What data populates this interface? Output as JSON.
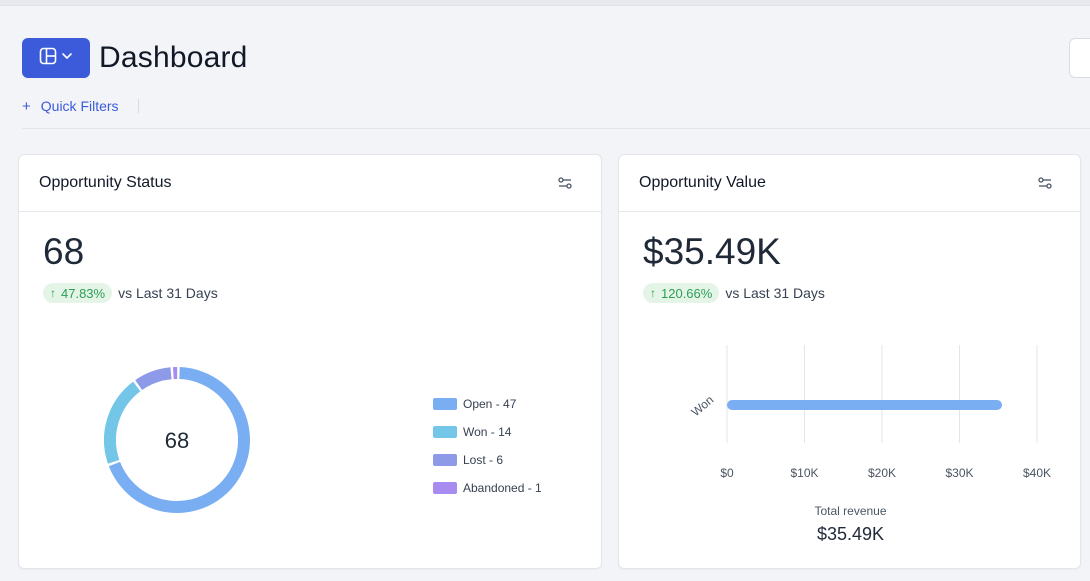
{
  "header": {
    "title": "Dashboard",
    "quick_filters_label": "Quick Filters"
  },
  "colors": {
    "primary": "#3b5bdb",
    "positive": "#2f9e56",
    "positive_bg": "#e4f5e8"
  },
  "cards": {
    "status": {
      "title": "Opportunity Status",
      "value": "68",
      "change": "47.83%",
      "change_suffix": "vs Last 31 Days",
      "center_label": "68",
      "legend": [
        {
          "label": "Open - 47",
          "color": "#7aaef2"
        },
        {
          "label": "Won - 14",
          "color": "#73c6e8"
        },
        {
          "label": "Lost - 6",
          "color": "#8c9ae8"
        },
        {
          "label": "Abandoned - 1",
          "color": "#a78bf0"
        }
      ]
    },
    "value": {
      "title": "Opportunity Value",
      "value": "$35.49K",
      "change": "120.66%",
      "change_suffix": "vs Last 31 Days",
      "total_label": "Total revenue",
      "total_value": "$35.49K"
    }
  },
  "chart_data": [
    {
      "type": "pie",
      "variant": "donut",
      "categories": [
        "Open",
        "Won",
        "Lost",
        "Abandoned"
      ],
      "values": [
        47,
        14,
        6,
        1
      ],
      "colors": [
        "#7aaef2",
        "#73c6e8",
        "#8c9ae8",
        "#a78bf0"
      ],
      "center_text": "68",
      "legend_position": "right"
    },
    {
      "type": "bar",
      "orientation": "horizontal",
      "categories": [
        "Won"
      ],
      "values": [
        35490
      ],
      "xlim": [
        0,
        40000
      ],
      "x_ticks": [
        "$0",
        "$10K",
        "$20K",
        "$30K",
        "$40K"
      ],
      "bar_color": "#7aaef2",
      "grid": true
    }
  ]
}
